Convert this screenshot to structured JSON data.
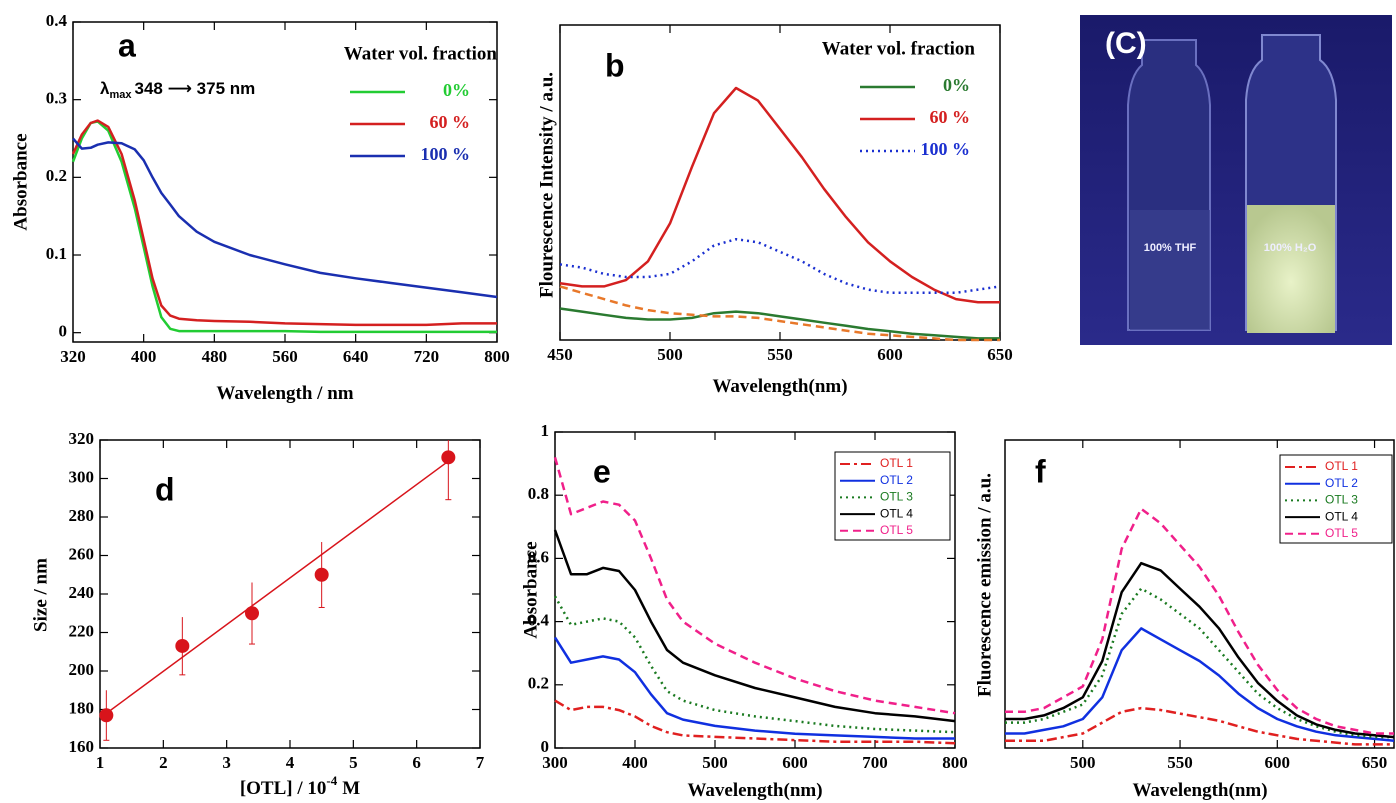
{
  "chart_data": [
    {
      "type": "line",
      "label": "a",
      "legend_title": "Water vol. fraction",
      "annotation": {
        "symbol": "λ",
        "sub": "max",
        "text": "348 ⟶ 375 nm"
      },
      "x_label": "Wavelength / nm",
      "y_label": "Absorbance",
      "x": [
        320,
        330,
        340,
        348,
        360,
        375,
        390,
        400,
        410,
        420,
        430,
        440,
        460,
        480,
        520,
        560,
        600,
        640,
        680,
        720,
        760,
        800
      ],
      "xlim": [
        320,
        800
      ],
      "xticks": [
        320,
        400,
        480,
        560,
        640,
        720,
        800
      ],
      "ylim": [
        -0.012,
        0.4
      ],
      "yticks": [
        0,
        0.1,
        0.2,
        0.3,
        0.4
      ],
      "series": [
        {
          "name": "0%",
          "color": "#22cc33",
          "dash": "solid",
          "values": [
            0.22,
            0.25,
            0.27,
            0.272,
            0.26,
            0.22,
            0.16,
            0.11,
            0.06,
            0.02,
            0.005,
            0.002,
            0.002,
            0.002,
            0.002,
            0.002,
            0.001,
            0.001,
            0.001,
            0.001,
            0.001,
            0.001
          ]
        },
        {
          "name": "60 %",
          "color": "#d42020",
          "dash": "solid",
          "values": [
            0.23,
            0.255,
            0.27,
            0.273,
            0.265,
            0.23,
            0.17,
            0.12,
            0.07,
            0.035,
            0.022,
            0.018,
            0.016,
            0.015,
            0.014,
            0.012,
            0.011,
            0.01,
            0.01,
            0.01,
            0.012,
            0.012
          ]
        },
        {
          "name": "100 %",
          "color": "#1a2fb0",
          "dash": "solid",
          "values": [
            0.25,
            0.237,
            0.238,
            0.242,
            0.245,
            0.244,
            0.236,
            0.222,
            0.2,
            0.18,
            0.165,
            0.15,
            0.13,
            0.117,
            0.1,
            0.088,
            0.077,
            0.07,
            0.064,
            0.058,
            0.052,
            0.046
          ]
        }
      ]
    },
    {
      "type": "line",
      "label": "b",
      "legend_title": "Water vol. fraction",
      "x_label": "Wavelength(nm)",
      "y_label": "Flourescence Intensity / a.u.",
      "x": [
        450,
        460,
        470,
        480,
        490,
        500,
        510,
        520,
        530,
        540,
        550,
        560,
        570,
        580,
        590,
        600,
        610,
        620,
        630,
        640,
        650
      ],
      "xlim": [
        450,
        650
      ],
      "xticks": [
        450,
        500,
        550,
        600,
        650
      ],
      "ylim": [
        0,
        1
      ],
      "series": [
        {
          "name": "0%",
          "color": "#2a7a30",
          "dash": "solid",
          "values": [
            0.1,
            0.09,
            0.08,
            0.07,
            0.065,
            0.065,
            0.07,
            0.085,
            0.09,
            0.085,
            0.075,
            0.065,
            0.055,
            0.045,
            0.035,
            0.028,
            0.02,
            0.015,
            0.01,
            0.005,
            0.005
          ]
        },
        {
          "name": "60 %",
          "color": "#d42020",
          "dash": "solid",
          "values": [
            0.18,
            0.17,
            0.17,
            0.19,
            0.25,
            0.37,
            0.55,
            0.72,
            0.8,
            0.76,
            0.67,
            0.58,
            0.48,
            0.39,
            0.31,
            0.25,
            0.2,
            0.16,
            0.13,
            0.12,
            0.12
          ]
        },
        {
          "name": "100 %",
          "color": "#1a2fd0",
          "dash": "dotted",
          "values": [
            0.24,
            0.23,
            0.21,
            0.2,
            0.2,
            0.21,
            0.25,
            0.3,
            0.32,
            0.31,
            0.28,
            0.25,
            0.21,
            0.18,
            0.16,
            0.15,
            0.15,
            0.15,
            0.15,
            0.16,
            0.17
          ]
        },
        {
          "color": "#e8782a",
          "dash": "dashed",
          "values": [
            0.17,
            0.15,
            0.13,
            0.11,
            0.095,
            0.085,
            0.08,
            0.075,
            0.075,
            0.07,
            0.06,
            0.05,
            0.04,
            0.03,
            0.02,
            0.015,
            0.01,
            0.005,
            0,
            0,
            0
          ]
        }
      ]
    },
    {
      "type": "image",
      "label": "(C)",
      "captions": [
        "100% THF",
        "100% H₂O"
      ]
    },
    {
      "type": "scatter",
      "label": "d",
      "x_label": "[OTL] / 10",
      "x_label_sup": "-4",
      "x_label_unit": "M",
      "y_label": "Size / nm",
      "color": "#d8141b",
      "x": [
        1.1,
        2.3,
        3.4,
        4.5,
        6.5
      ],
      "values": [
        177,
        213,
        230,
        250,
        311
      ],
      "errors": [
        13,
        15,
        16,
        17,
        22
      ],
      "fit": {
        "x": [
          1.1,
          6.5
        ],
        "y": [
          178,
          309
        ]
      },
      "xlim": [
        1,
        7
      ],
      "xticks": [
        1,
        2,
        3,
        4,
        5,
        6,
        7
      ],
      "ylim": [
        160,
        320
      ],
      "yticks": [
        160,
        180,
        200,
        220,
        240,
        260,
        280,
        300,
        320
      ]
    },
    {
      "type": "line",
      "label": "e",
      "x_label": "Wavelength(nm)",
      "y_label": "Absorbance",
      "x": [
        300,
        320,
        340,
        360,
        380,
        400,
        420,
        440,
        460,
        500,
        550,
        600,
        650,
        700,
        750,
        800
      ],
      "xlim": [
        300,
        800
      ],
      "xticks": [
        300,
        400,
        500,
        600,
        700,
        800
      ],
      "ylim": [
        0,
        1
      ],
      "yticks": [
        0,
        0.2,
        0.4,
        0.6,
        0.8,
        1
      ],
      "series": [
        {
          "name": "OTL 1",
          "color": "#e02020",
          "dash": "dashdot",
          "values": [
            0.15,
            0.12,
            0.13,
            0.13,
            0.12,
            0.1,
            0.07,
            0.05,
            0.04,
            0.035,
            0.03,
            0.025,
            0.02,
            0.02,
            0.02,
            0.015
          ]
        },
        {
          "name": "OTL 2",
          "color": "#1030e0",
          "dash": "solid",
          "values": [
            0.35,
            0.27,
            0.28,
            0.29,
            0.28,
            0.24,
            0.17,
            0.11,
            0.09,
            0.07,
            0.055,
            0.045,
            0.04,
            0.035,
            0.03,
            0.03
          ]
        },
        {
          "name": "OTL 3",
          "color": "#1a7a20",
          "dash": "dotted",
          "values": [
            0.48,
            0.39,
            0.4,
            0.41,
            0.4,
            0.35,
            0.26,
            0.18,
            0.15,
            0.12,
            0.1,
            0.085,
            0.07,
            0.06,
            0.055,
            0.05
          ]
        },
        {
          "name": "OTL 4",
          "color": "#000000",
          "dash": "solid",
          "values": [
            0.69,
            0.55,
            0.55,
            0.57,
            0.56,
            0.5,
            0.4,
            0.31,
            0.27,
            0.23,
            0.19,
            0.16,
            0.13,
            0.11,
            0.1,
            0.085
          ]
        },
        {
          "name": "OTL 5",
          "color": "#f0208a",
          "dash": "dashed",
          "values": [
            0.92,
            0.74,
            0.76,
            0.78,
            0.77,
            0.72,
            0.6,
            0.47,
            0.4,
            0.33,
            0.27,
            0.22,
            0.18,
            0.15,
            0.13,
            0.11
          ]
        }
      ]
    },
    {
      "type": "line",
      "label": "f",
      "x_label": "Wavelength(nm)",
      "y_label": "Fluorescence emission / a.u.",
      "x": [
        460,
        470,
        480,
        490,
        500,
        510,
        520,
        530,
        540,
        550,
        560,
        570,
        580,
        590,
        600,
        610,
        620,
        630,
        640,
        650,
        660
      ],
      "xlim": [
        460,
        660
      ],
      "xticks": [
        500,
        550,
        600,
        650
      ],
      "ylim": [
        0,
        0.85
      ],
      "series": [
        {
          "name": "OTL 1",
          "color": "#e02020",
          "dash": "dashdot",
          "values": [
            0.02,
            0.02,
            0.02,
            0.03,
            0.04,
            0.07,
            0.1,
            0.11,
            0.105,
            0.095,
            0.085,
            0.075,
            0.06,
            0.045,
            0.035,
            0.025,
            0.02,
            0.015,
            0.01,
            0.01,
            0.01
          ]
        },
        {
          "name": "OTL 2",
          "color": "#1030e0",
          "dash": "solid",
          "values": [
            0.04,
            0.04,
            0.05,
            0.06,
            0.08,
            0.14,
            0.27,
            0.33,
            0.3,
            0.27,
            0.24,
            0.2,
            0.15,
            0.11,
            0.08,
            0.06,
            0.045,
            0.035,
            0.03,
            0.025,
            0.02
          ]
        },
        {
          "name": "OTL 3",
          "color": "#1a7a20",
          "dash": "dotted",
          "values": [
            0.07,
            0.07,
            0.08,
            0.1,
            0.12,
            0.2,
            0.37,
            0.44,
            0.41,
            0.37,
            0.33,
            0.27,
            0.21,
            0.15,
            0.11,
            0.08,
            0.06,
            0.045,
            0.035,
            0.03,
            0.03
          ]
        },
        {
          "name": "OTL 4",
          "color": "#000000",
          "dash": "solid",
          "values": [
            0.08,
            0.08,
            0.09,
            0.11,
            0.14,
            0.24,
            0.43,
            0.51,
            0.49,
            0.44,
            0.39,
            0.33,
            0.25,
            0.18,
            0.13,
            0.09,
            0.065,
            0.05,
            0.04,
            0.035,
            0.03
          ]
        },
        {
          "name": "OTL 5",
          "color": "#f0208a",
          "dash": "dashed",
          "values": [
            0.1,
            0.1,
            0.11,
            0.14,
            0.17,
            0.3,
            0.55,
            0.66,
            0.62,
            0.56,
            0.5,
            0.42,
            0.32,
            0.23,
            0.16,
            0.11,
            0.08,
            0.06,
            0.05,
            0.04,
            0.04
          ]
        }
      ]
    }
  ]
}
